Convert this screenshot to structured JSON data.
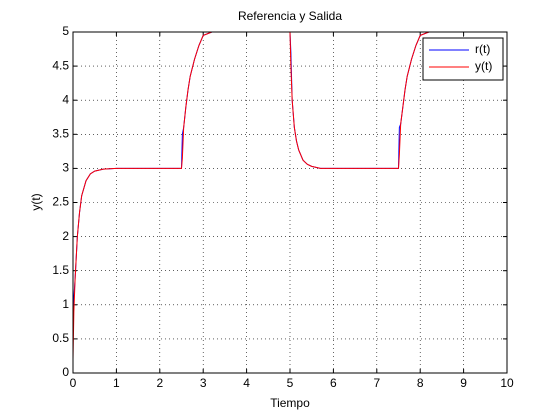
{
  "chart_data": {
    "type": "line",
    "title": "Referencia y Salida",
    "xlabel": "Tiempo",
    "ylabel": "y(t)",
    "x": [
      0,
      0.02,
      0.05,
      0.1,
      0.15,
      0.2,
      0.3,
      0.4,
      0.5,
      0.7,
      1,
      2,
      2.5,
      2.52,
      2.55,
      2.6,
      2.65,
      2.7,
      2.8,
      2.9,
      3,
      3.2,
      4,
      5,
      5.02,
      5.05,
      5.1,
      5.15,
      5.2,
      5.3,
      5.4,
      5.5,
      5.7,
      6,
      7,
      7.5,
      7.52,
      7.55,
      7.6,
      7.65,
      7.7,
      7.8,
      7.9,
      8,
      8.2,
      9,
      10
    ],
    "series": [
      {
        "name": "r(t)",
        "color": "#0000ff",
        "values": [
          0.6,
          1.1,
          1.4,
          2.0,
          2.35,
          2.6,
          2.82,
          2.92,
          2.96,
          2.99,
          3,
          3,
          3,
          3.5,
          3.6,
          3.9,
          4.15,
          4.35,
          4.6,
          4.8,
          4.95,
          5,
          5,
          5,
          4.7,
          4.0,
          3.6,
          3.4,
          3.27,
          3.12,
          3.06,
          3.03,
          3,
          3,
          3,
          3,
          3.6,
          3.65,
          3.9,
          4.15,
          4.35,
          4.6,
          4.8,
          4.95,
          5,
          5,
          5
        ]
      },
      {
        "name": "y(t)",
        "color": "#ff0000",
        "values": [
          0.2,
          0.9,
          1.4,
          2.0,
          2.35,
          2.6,
          2.82,
          2.92,
          2.96,
          2.99,
          3,
          3,
          3,
          3.15,
          3.6,
          3.9,
          4.15,
          4.35,
          4.6,
          4.8,
          4.95,
          5,
          5,
          5,
          4.5,
          4.0,
          3.6,
          3.4,
          3.27,
          3.12,
          3.06,
          3.03,
          3,
          3,
          3,
          3,
          3.2,
          3.65,
          3.9,
          4.15,
          4.35,
          4.6,
          4.8,
          4.95,
          5,
          5,
          5
        ]
      }
    ],
    "xlim": [
      0,
      10
    ],
    "xticks": [
      0,
      1,
      2,
      3,
      4,
      5,
      6,
      7,
      8,
      9,
      10
    ],
    "ylim": [
      0,
      5
    ],
    "yticks": [
      0,
      0.5,
      1,
      1.5,
      2,
      2.5,
      3,
      3.5,
      4,
      4.5,
      5
    ],
    "grid": true,
    "legend": "upper right"
  }
}
